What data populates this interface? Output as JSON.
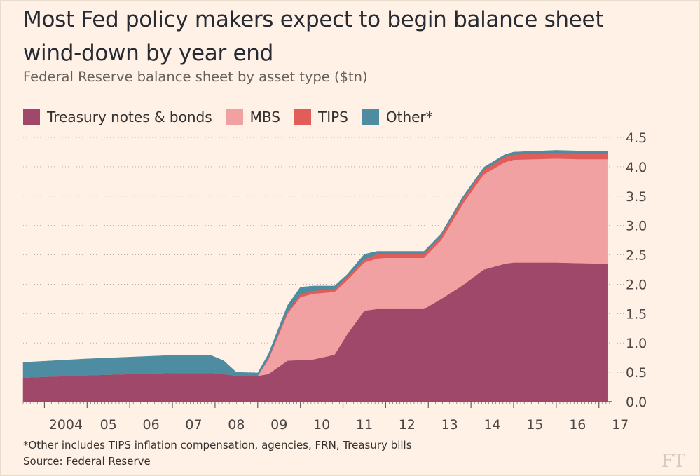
{
  "chart_data": {
    "type": "area",
    "title": "Most Fed policy makers expect to begin balance sheet wind-down by year end",
    "subtitle": "Federal Reserve balance sheet by asset type ($tn)",
    "stacked": true,
    "x": [
      2003.5,
      2005.0,
      2006.0,
      2007.0,
      2007.9,
      2008.2,
      2008.5,
      2009.0,
      2009.25,
      2009.7,
      2010.0,
      2010.3,
      2010.8,
      2011.1,
      2011.5,
      2011.8,
      2012.0,
      2012.4,
      2012.9,
      2013.3,
      2013.8,
      2014.3,
      2014.8,
      2015.0,
      2016.0,
      2016.5,
      2017.2
    ],
    "series": [
      {
        "name": "Treasury notes & bonds",
        "color": "#a0486a",
        "values": [
          0.41,
          0.45,
          0.47,
          0.49,
          0.49,
          0.47,
          0.44,
          0.44,
          0.47,
          0.7,
          0.71,
          0.72,
          0.8,
          1.15,
          1.55,
          1.58,
          1.58,
          1.58,
          1.58,
          1.75,
          1.98,
          2.25,
          2.35,
          2.37,
          2.37,
          2.36,
          2.35
        ]
      },
      {
        "name": "MBS",
        "color": "#f2a1a2",
        "values": [
          0.0,
          0.0,
          0.0,
          0.0,
          0.0,
          0.0,
          0.0,
          0.0,
          0.25,
          0.8,
          1.07,
          1.12,
          1.07,
          0.92,
          0.82,
          0.86,
          0.87,
          0.87,
          0.87,
          1.0,
          1.38,
          1.62,
          1.73,
          1.75,
          1.77,
          1.77,
          1.78
        ]
      },
      {
        "name": "TIPS",
        "color": "#e05d5a",
        "values": [
          0.0,
          0.0,
          0.0,
          0.0,
          0.0,
          0.0,
          0.0,
          0.0,
          0.02,
          0.04,
          0.05,
          0.05,
          0.05,
          0.05,
          0.06,
          0.07,
          0.07,
          0.07,
          0.07,
          0.07,
          0.08,
          0.08,
          0.09,
          0.09,
          0.1,
          0.1,
          0.1
        ]
      },
      {
        "name": "Other*",
        "color": "#4e8ca1",
        "values": [
          0.26,
          0.28,
          0.29,
          0.3,
          0.3,
          0.23,
          0.06,
          0.05,
          0.07,
          0.1,
          0.12,
          0.08,
          0.05,
          0.05,
          0.08,
          0.05,
          0.04,
          0.04,
          0.04,
          0.04,
          0.04,
          0.04,
          0.04,
          0.04,
          0.04,
          0.04,
          0.04
        ]
      }
    ],
    "y_ticks": [
      0.0,
      0.5,
      1.0,
      1.5,
      2.0,
      2.5,
      3.0,
      3.5,
      4.0,
      4.5
    ],
    "y_tick_labels": [
      "0.0",
      "0.5",
      "1.0",
      "1.5",
      "2.0",
      "2.5",
      "3.0",
      "3.5",
      "4.0",
      "4.5"
    ],
    "ylim": [
      0,
      4.5
    ],
    "x_ticks": [
      2004,
      2005,
      2006,
      2007,
      2008,
      2009,
      2010,
      2011,
      2012,
      2013,
      2014,
      2015,
      2016,
      2017
    ],
    "x_tick_labels": [
      "2004",
      "05",
      "06",
      "07",
      "08",
      "09",
      "10",
      "11",
      "12",
      "13",
      "14",
      "15",
      "16",
      "17"
    ],
    "xlim": [
      2003.5,
      2017.3
    ],
    "grid": true,
    "legend_position": "top-left"
  },
  "footnote": "*Other includes TIPS inflation compensation, agencies, FRN, Treasury bills",
  "source": "Source: Federal Reserve",
  "logo_text": "FT"
}
